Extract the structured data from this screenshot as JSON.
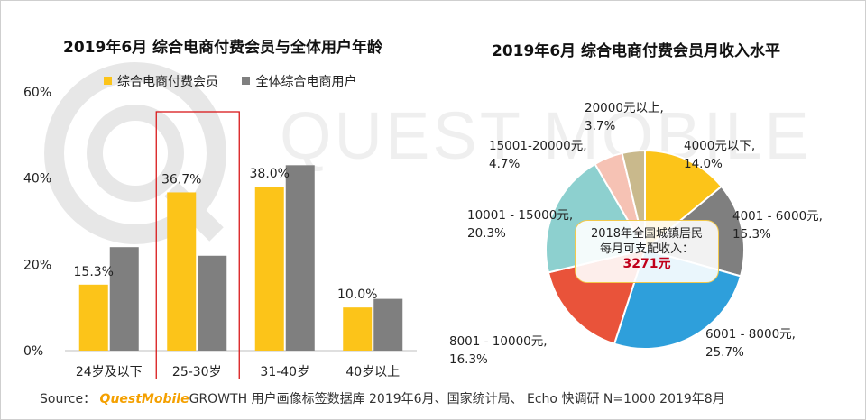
{
  "titles": {
    "left": "2019年6月 综合电商付费会员与全体用户年龄",
    "right": "2019年6月 综合电商付费会员月收入水平"
  },
  "watermark": "QUEST MOBILE",
  "footer": {
    "prefix": "Source：",
    "brand": "QuestMobile",
    "rest": "GROWTH 用户画像标签数据库 2019年6月、国家统计局、 Echo 快调研 N=1000 2019年8月"
  },
  "callout": {
    "line1": "2018年全国城镇居民",
    "line2": "每月可支配收入：",
    "amount": "3271元"
  },
  "colors": {
    "yellow": "#fcc419",
    "gray": "#7f7f7f",
    "pie": [
      "#fcc419",
      "#7f7f7f",
      "#2e9fdb",
      "#e9533a",
      "#8dd0cf",
      "#f6c2b4",
      "#c9b98c"
    ],
    "highlight": "#d9181a"
  },
  "chart_data": [
    {
      "type": "bar",
      "title": "2019年6月 综合电商付费会员与全体用户年龄",
      "categories": [
        "24岁及以下",
        "25-30岁",
        "31-40岁",
        "40岁以上"
      ],
      "series": [
        {
          "name": "综合电商付费会员",
          "values": [
            15.3,
            36.7,
            38.0,
            10.0
          ],
          "labels": [
            "15.3%",
            "36.7%",
            "38.0%",
            "10.0%"
          ]
        },
        {
          "name": "全体综合电商用户",
          "values": [
            24.0,
            22.0,
            43.0,
            12.0
          ]
        }
      ],
      "yticks": [
        "0%",
        "20%",
        "40%",
        "60%"
      ],
      "ylim": [
        0,
        60
      ],
      "highlight_category": "25-30岁",
      "legend": "top"
    },
    {
      "type": "pie",
      "title": "2019年6月 综合电商付费会员月收入水平",
      "slices": [
        {
          "label": "4000元以下,",
          "pct": "14.0%",
          "value": 14.0
        },
        {
          "label": "4001 - 6000元,",
          "pct": "15.3%",
          "value": 15.3
        },
        {
          "label": "6001 - 8000元,",
          "pct": "25.7%",
          "value": 25.7
        },
        {
          "label": "8001 - 10000元,",
          "pct": "16.3%",
          "value": 16.3
        },
        {
          "label": "10001 - 15000元,",
          "pct": "20.3%",
          "value": 20.3
        },
        {
          "label": "15001-20000元,",
          "pct": "4.7%",
          "value": 4.7
        },
        {
          "label": "20000元以上,",
          "pct": "3.7%",
          "value": 3.7
        }
      ]
    }
  ]
}
